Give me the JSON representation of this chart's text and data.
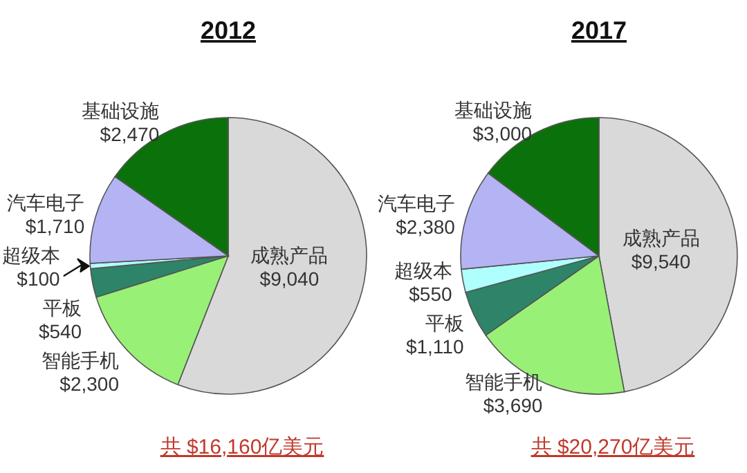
{
  "chart_data": [
    {
      "type": "pie",
      "title": "2012",
      "categories": [
        "成熟产品",
        "智能手机",
        "平板",
        "超级本",
        "汽车电子",
        "基础设施"
      ],
      "values": [
        9040,
        2300,
        540,
        100,
        1710,
        2470
      ],
      "value_labels": [
        "$9,040",
        "$2,300",
        "$540",
        "$100",
        "$1,710",
        "$2,470"
      ],
      "colors": [
        "#d9d9d9",
        "#99f077",
        "#2e8468",
        "#b0ffff",
        "#b4b4f4",
        "#0b720b"
      ],
      "annotations": [
        "共 $16,160亿美元"
      ]
    },
    {
      "type": "pie",
      "title": "2017",
      "categories": [
        "成熟产品",
        "智能手机",
        "平板",
        "超级本",
        "汽车电子",
        "基础设施"
      ],
      "values": [
        9540,
        3690,
        1110,
        550,
        2380,
        3000
      ],
      "value_labels": [
        "$9,540",
        "$3,690",
        "$1,110",
        "$550",
        "$2,380",
        "$3,000"
      ],
      "colors": [
        "#d9d9d9",
        "#99f077",
        "#2e8468",
        "#b0ffff",
        "#b4b4f4",
        "#0b720b"
      ],
      "annotations": [
        "共 $20,270亿美元"
      ]
    }
  ]
}
